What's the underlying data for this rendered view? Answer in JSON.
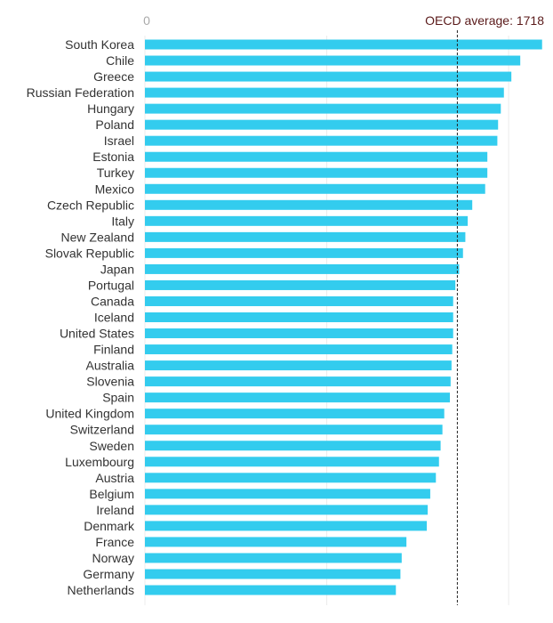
{
  "chart_data": {
    "type": "bar",
    "orientation": "horizontal",
    "categories": [
      "South Korea",
      "Chile",
      "Greece",
      "Russian Federation",
      "Hungary",
      "Poland",
      "Israel",
      "Estonia",
      "Turkey",
      "Mexico",
      "Czech Republic",
      "Italy",
      "New Zealand",
      "Slovak Republic",
      "Japan",
      "Portugal",
      "Canada",
      "Iceland",
      "United States",
      "Finland",
      "Australia",
      "Slovenia",
      "Spain",
      "United Kingdom",
      "Switzerland",
      "Sweden",
      "Luxembourg",
      "Austria",
      "Belgium",
      "Ireland",
      "Denmark",
      "France",
      "Norway",
      "Germany",
      "Netherlands"
    ],
    "values": [
      2184,
      2064,
      2015,
      1974,
      1957,
      1942,
      1938,
      1883,
      1883,
      1871,
      1800,
      1775,
      1762,
      1749,
      1728,
      1707,
      1695,
      1695,
      1695,
      1690,
      1686,
      1681,
      1677,
      1646,
      1636,
      1626,
      1617,
      1600,
      1569,
      1555,
      1550,
      1438,
      1412,
      1405,
      1380
    ],
    "xlim": [
      0,
      2200
    ],
    "x_ticks": [
      "0"
    ],
    "gridlines": [
      0,
      1000,
      2000
    ],
    "reference_line": {
      "label": "OECD average: 1718",
      "value": 1718
    },
    "bar_color": "#33ccee",
    "title": "",
    "xlabel": "",
    "ylabel": ""
  }
}
